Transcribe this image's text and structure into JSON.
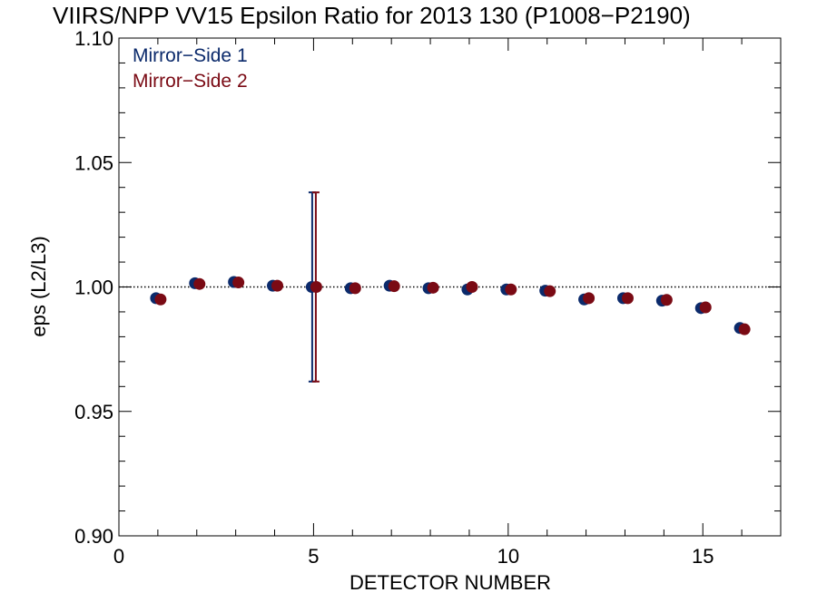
{
  "chart_data": {
    "type": "scatter",
    "title": "VIIRS/NPP VV15 Epsilon Ratio for 2013 130 (P1008−P2190)",
    "xlabel": "DETECTOR NUMBER",
    "ylabel": "eps (L2/L3)",
    "xlim": [
      0,
      17
    ],
    "ylim": [
      0.9,
      1.1
    ],
    "x_ticks": [
      0,
      5,
      10,
      15
    ],
    "y_ticks": [
      0.9,
      0.95,
      1.0,
      1.05,
      1.1
    ],
    "x_tick_labels": [
      "0",
      "5",
      "10",
      "15"
    ],
    "y_tick_labels": [
      "0.90",
      "0.95",
      "1.00",
      "1.05",
      "1.10"
    ],
    "reference_line": {
      "y": 1.0,
      "style": "dotted"
    },
    "legend": {
      "position": "top-left"
    },
    "series": [
      {
        "name": "Mirror−Side 1",
        "color": "#0b2a6b",
        "x": [
          1,
          2,
          3,
          4,
          5,
          6,
          7,
          8,
          9,
          10,
          11,
          12,
          13,
          14,
          15,
          16
        ],
        "y": [
          0.9955,
          1.0015,
          1.002,
          1.0005,
          1.0,
          0.9995,
          1.0005,
          0.9995,
          0.999,
          0.999,
          0.9985,
          0.995,
          0.9955,
          0.9945,
          0.9915,
          0.9835
        ],
        "error_bar": {
          "x": 5,
          "low": 0.962,
          "high": 1.038
        }
      },
      {
        "name": "Mirror−Side 2",
        "color": "#7a0a14",
        "x": [
          1,
          2,
          3,
          4,
          5,
          6,
          7,
          8,
          9,
          10,
          11,
          12,
          13,
          14,
          15,
          16
        ],
        "y": [
          0.995,
          1.0012,
          1.0018,
          1.0005,
          1.0,
          0.9995,
          1.0003,
          0.9997,
          1.0,
          0.999,
          0.9983,
          0.9955,
          0.9955,
          0.9948,
          0.9918,
          0.983
        ],
        "error_bar": {
          "x": 5,
          "low": 0.962,
          "high": 1.038
        }
      }
    ]
  }
}
